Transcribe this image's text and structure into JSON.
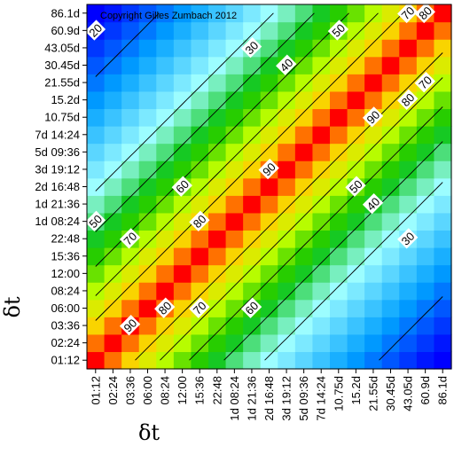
{
  "chart_data": {
    "type": "heatmap",
    "title": "",
    "copyright": "Copyright Gilles Zumbach 2012",
    "xlabel": "δt",
    "ylabel": "δt",
    "categories": [
      "01:12",
      "02:24",
      "03:36",
      "06:00",
      "08:24",
      "12:00",
      "15:36",
      "22:48",
      "1d 08:24",
      "1d 21:36",
      "2d 16:48",
      "3d 19:12",
      "5d 09:36",
      "7d 14:24",
      "10.75d",
      "15.2d",
      "21.55d",
      "30.45d",
      "43.05d",
      "60.9d",
      "86.1d"
    ],
    "colorscale": [
      "#0000ff",
      "#00a0ff",
      "#a0ffff",
      "#00c000",
      "#c0ff00",
      "#ffd000",
      "#ff0000"
    ],
    "values": [
      [
        98,
        90,
        82,
        75,
        68,
        62,
        57,
        52,
        47,
        43,
        39,
        36,
        33,
        30,
        27,
        24,
        21,
        18,
        15,
        12,
        10
      ],
      [
        90,
        98,
        90,
        82,
        75,
        68,
        62,
        57,
        52,
        47,
        43,
        39,
        36,
        33,
        30,
        27,
        24,
        21,
        18,
        15,
        12
      ],
      [
        82,
        90,
        98,
        90,
        82,
        75,
        68,
        62,
        57,
        52,
        47,
        43,
        39,
        36,
        33,
        30,
        27,
        24,
        21,
        18,
        15
      ],
      [
        75,
        82,
        90,
        98,
        90,
        82,
        75,
        68,
        62,
        57,
        52,
        47,
        43,
        39,
        36,
        33,
        30,
        27,
        24,
        21,
        18
      ],
      [
        68,
        75,
        82,
        90,
        98,
        90,
        82,
        75,
        68,
        62,
        57,
        52,
        47,
        43,
        39,
        36,
        33,
        30,
        27,
        24,
        21
      ],
      [
        62,
        68,
        75,
        82,
        90,
        98,
        90,
        82,
        75,
        68,
        62,
        57,
        52,
        47,
        43,
        39,
        36,
        33,
        30,
        27,
        24
      ],
      [
        57,
        62,
        68,
        75,
        82,
        90,
        98,
        90,
        82,
        75,
        68,
        62,
        57,
        52,
        47,
        43,
        39,
        36,
        33,
        30,
        27
      ],
      [
        52,
        57,
        62,
        68,
        75,
        82,
        90,
        98,
        90,
        82,
        75,
        68,
        62,
        57,
        52,
        47,
        43,
        39,
        36,
        33,
        30
      ],
      [
        47,
        52,
        57,
        62,
        68,
        75,
        82,
        90,
        98,
        90,
        82,
        75,
        68,
        62,
        57,
        52,
        47,
        43,
        39,
        36,
        33
      ],
      [
        43,
        47,
        52,
        57,
        62,
        68,
        75,
        82,
        90,
        98,
        90,
        82,
        75,
        68,
        62,
        57,
        52,
        47,
        43,
        39,
        36
      ],
      [
        39,
        43,
        47,
        52,
        57,
        62,
        68,
        75,
        82,
        90,
        98,
        90,
        82,
        75,
        68,
        62,
        57,
        52,
        47,
        43,
        39
      ],
      [
        36,
        39,
        43,
        47,
        52,
        57,
        62,
        68,
        75,
        82,
        90,
        98,
        90,
        82,
        75,
        68,
        62,
        57,
        52,
        47,
        43
      ],
      [
        33,
        36,
        39,
        43,
        47,
        52,
        57,
        62,
        68,
        75,
        82,
        90,
        98,
        90,
        82,
        75,
        68,
        62,
        57,
        52,
        47
      ],
      [
        30,
        33,
        36,
        39,
        43,
        47,
        52,
        57,
        62,
        68,
        75,
        82,
        90,
        98,
        90,
        82,
        75,
        68,
        62,
        57,
        52
      ],
      [
        27,
        30,
        33,
        36,
        39,
        43,
        47,
        52,
        57,
        62,
        68,
        75,
        82,
        90,
        98,
        90,
        82,
        75,
        68,
        62,
        57
      ],
      [
        24,
        27,
        30,
        33,
        36,
        39,
        43,
        47,
        52,
        57,
        62,
        68,
        75,
        82,
        90,
        98,
        90,
        82,
        75,
        68,
        62
      ],
      [
        21,
        24,
        27,
        30,
        33,
        36,
        39,
        43,
        47,
        52,
        57,
        62,
        68,
        75,
        82,
        90,
        98,
        90,
        82,
        75,
        68
      ],
      [
        18,
        21,
        24,
        27,
        30,
        33,
        36,
        39,
        43,
        47,
        52,
        57,
        62,
        68,
        75,
        82,
        90,
        98,
        90,
        82,
        75
      ],
      [
        15,
        18,
        21,
        24,
        27,
        30,
        33,
        36,
        39,
        43,
        47,
        52,
        57,
        62,
        68,
        75,
        82,
        90,
        98,
        90,
        82
      ],
      [
        12,
        15,
        18,
        21,
        24,
        27,
        30,
        33,
        36,
        39,
        43,
        47,
        52,
        57,
        62,
        68,
        75,
        82,
        90,
        98,
        90
      ],
      [
        10,
        12,
        15,
        18,
        21,
        24,
        27,
        30,
        33,
        36,
        39,
        43,
        47,
        52,
        57,
        62,
        68,
        75,
        82,
        90,
        98
      ]
    ],
    "contour_levels": [
      20,
      30,
      40,
      50,
      60,
      70,
      80,
      90
    ],
    "contour_labels": [
      {
        "text": "20",
        "x": "01:12",
        "y": "60.9d"
      },
      {
        "text": "30",
        "x": "1d 21:36",
        "y": "43.05d"
      },
      {
        "text": "40",
        "x": "3d 19:12",
        "y": "30.45d"
      },
      {
        "text": "50",
        "x": "10.75d",
        "y": "60.9d"
      },
      {
        "text": "70",
        "x": "43.05d",
        "y": "86.1d"
      },
      {
        "text": "80",
        "x": "60.9d",
        "y": "86.1d"
      },
      {
        "text": "90",
        "x": "21.55d",
        "y": "10.75d"
      },
      {
        "text": "80",
        "x": "43.05d",
        "y": "15.2d"
      },
      {
        "text": "70",
        "x": "60.9d",
        "y": "21.55d"
      },
      {
        "text": "90",
        "x": "2d 16:48",
        "y": "3d 19:12"
      },
      {
        "text": "60",
        "x": "12:00",
        "y": "2d 16:48"
      },
      {
        "text": "80",
        "x": "15:36",
        "y": "1d 08:24"
      },
      {
        "text": "70",
        "x": "03:36",
        "y": "22:48"
      },
      {
        "text": "50",
        "x": "01:12",
        "y": "1d 08:24"
      },
      {
        "text": "50",
        "x": "15.2d",
        "y": "2d 16:48"
      },
      {
        "text": "40",
        "x": "21.55d",
        "y": "1d 21:36"
      },
      {
        "text": "30",
        "x": "43.05d",
        "y": "22:48"
      },
      {
        "text": "90",
        "x": "03:36",
        "y": "03:36"
      },
      {
        "text": "80",
        "x": "08:24",
        "y": "06:00"
      },
      {
        "text": "70",
        "x": "15:36",
        "y": "06:00"
      },
      {
        "text": "60",
        "x": "1d 21:36",
        "y": "06:00"
      }
    ],
    "grid": false,
    "legend": "none"
  }
}
